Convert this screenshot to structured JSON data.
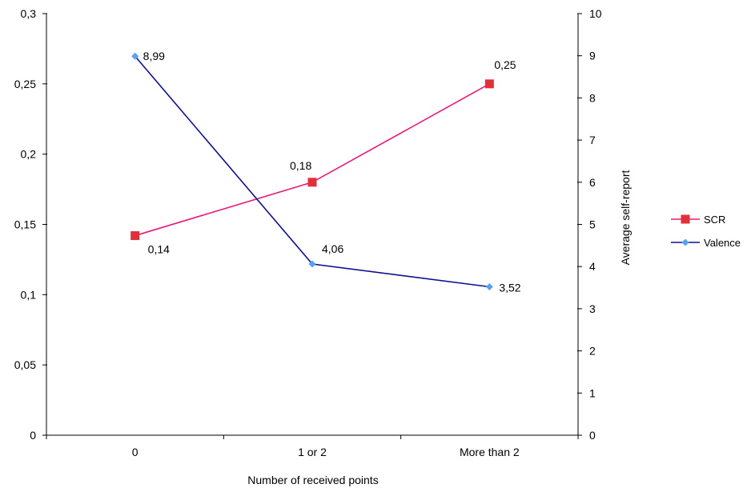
{
  "chart_data": {
    "type": "line",
    "title": "",
    "xlabel": "Number of received points",
    "ylabel_left": "",
    "ylabel_right": "Average self-report",
    "categories": [
      "0",
      "1 or 2",
      "More than 2"
    ],
    "y_left": {
      "lim": [
        0,
        0.3
      ],
      "ticks": [
        0,
        0.05,
        0.1,
        0.15,
        0.2,
        0.25,
        0.3
      ],
      "tick_labels": [
        "0",
        "0,05",
        "0,1",
        "0,15",
        "0,2",
        "0,25",
        "0,3"
      ]
    },
    "y_right": {
      "lim": [
        0,
        10
      ],
      "ticks": [
        0,
        1,
        2,
        3,
        4,
        5,
        6,
        7,
        8,
        9,
        10
      ],
      "tick_labels": [
        "0",
        "1",
        "2",
        "3",
        "4",
        "5",
        "6",
        "7",
        "8",
        "9",
        "10"
      ]
    },
    "grid": false,
    "legend_position": "right",
    "series": [
      {
        "name": "SCR",
        "axis": "left",
        "color": "#e8187c",
        "marker_color": "#e0303c",
        "marker": "square",
        "values": [
          0.142,
          0.18,
          0.25
        ],
        "labels": [
          "0,14",
          "0,18",
          "0,25"
        ]
      },
      {
        "name": "Valence",
        "axis": "right",
        "color": "#10108c",
        "marker_color": "#5aa0f0",
        "marker": "diamond",
        "values": [
          8.99,
          4.06,
          3.52
        ],
        "labels": [
          "8,99",
          "4,06",
          "3,52"
        ]
      }
    ]
  }
}
